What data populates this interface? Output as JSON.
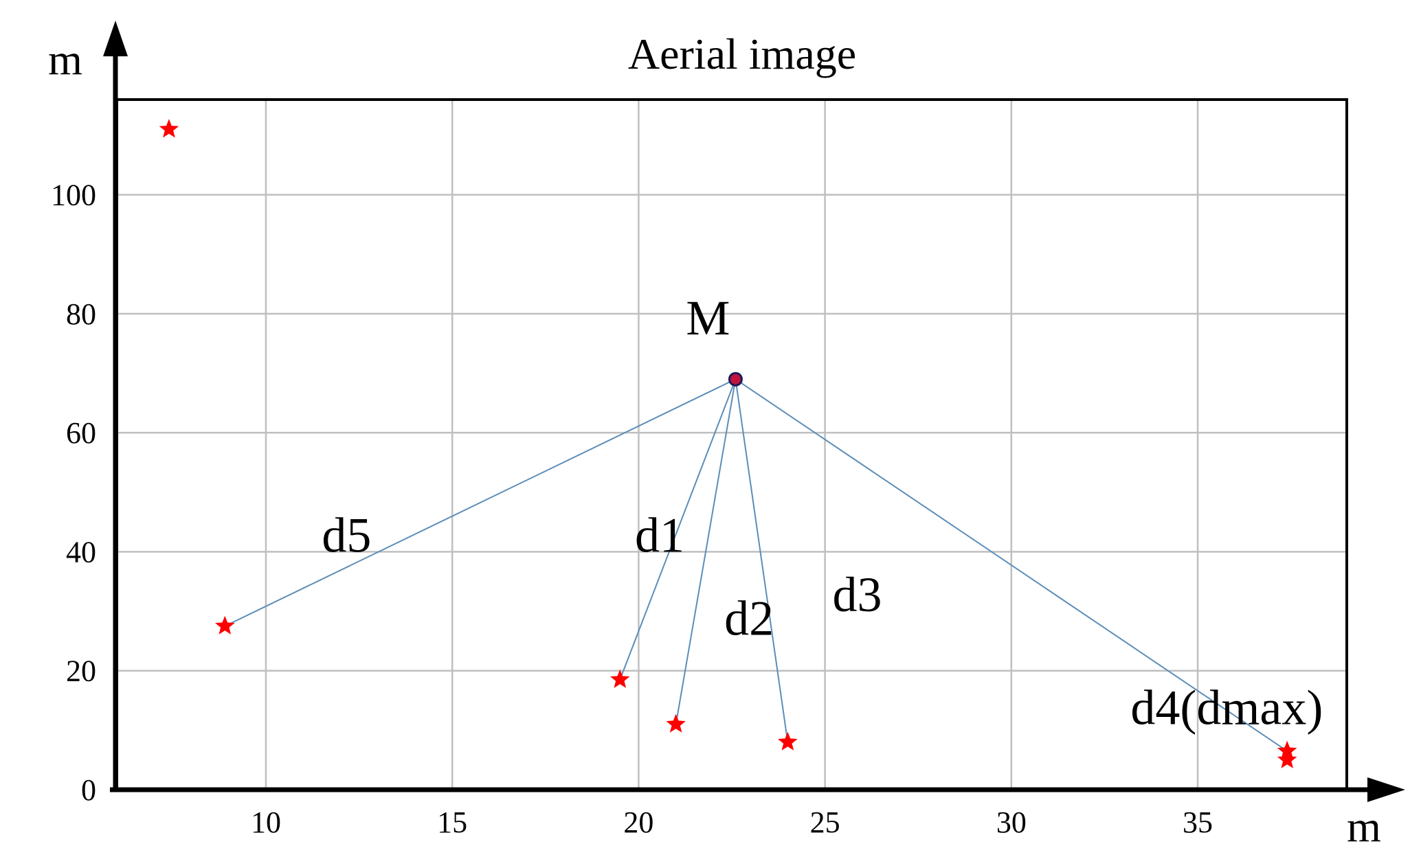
{
  "chart_data": {
    "type": "scatter",
    "title": "Aerial image",
    "xlabel": "m",
    "ylabel": "m",
    "xlim": [
      6,
      39
    ],
    "ylim": [
      0,
      116
    ],
    "xticks": [
      10,
      15,
      20,
      25,
      30,
      35
    ],
    "yticks": [
      0,
      20,
      40,
      60,
      80,
      100
    ],
    "grid": true,
    "center": {
      "label": "M",
      "x": 22.6,
      "y": 69,
      "color": "#c0143c"
    },
    "points": [
      {
        "x": 7.4,
        "y": 111
      },
      {
        "x": 8.9,
        "y": 27.5
      },
      {
        "x": 19.5,
        "y": 18.5
      },
      {
        "x": 21,
        "y": 11
      },
      {
        "x": 24,
        "y": 8
      },
      {
        "x": 37.4,
        "y": 6.5
      },
      {
        "x": 37.4,
        "y": 5
      }
    ],
    "point_color": "#ff0000",
    "connections": [
      {
        "label": "d1",
        "to": 2,
        "label_x": 19.9,
        "label_y": 40
      },
      {
        "label": "d2",
        "to": 3,
        "label_x": 22.3,
        "label_y": 26
      },
      {
        "label": "d3",
        "to": 4,
        "label_x": 25.2,
        "label_y": 30
      },
      {
        "label": "d4(dmax)",
        "to": 5,
        "label_x": 33.2,
        "label_y": 11
      },
      {
        "label": "d5",
        "to": 1,
        "label_x": 11.5,
        "label_y": 40
      }
    ],
    "line_color": "#5b8db8"
  }
}
